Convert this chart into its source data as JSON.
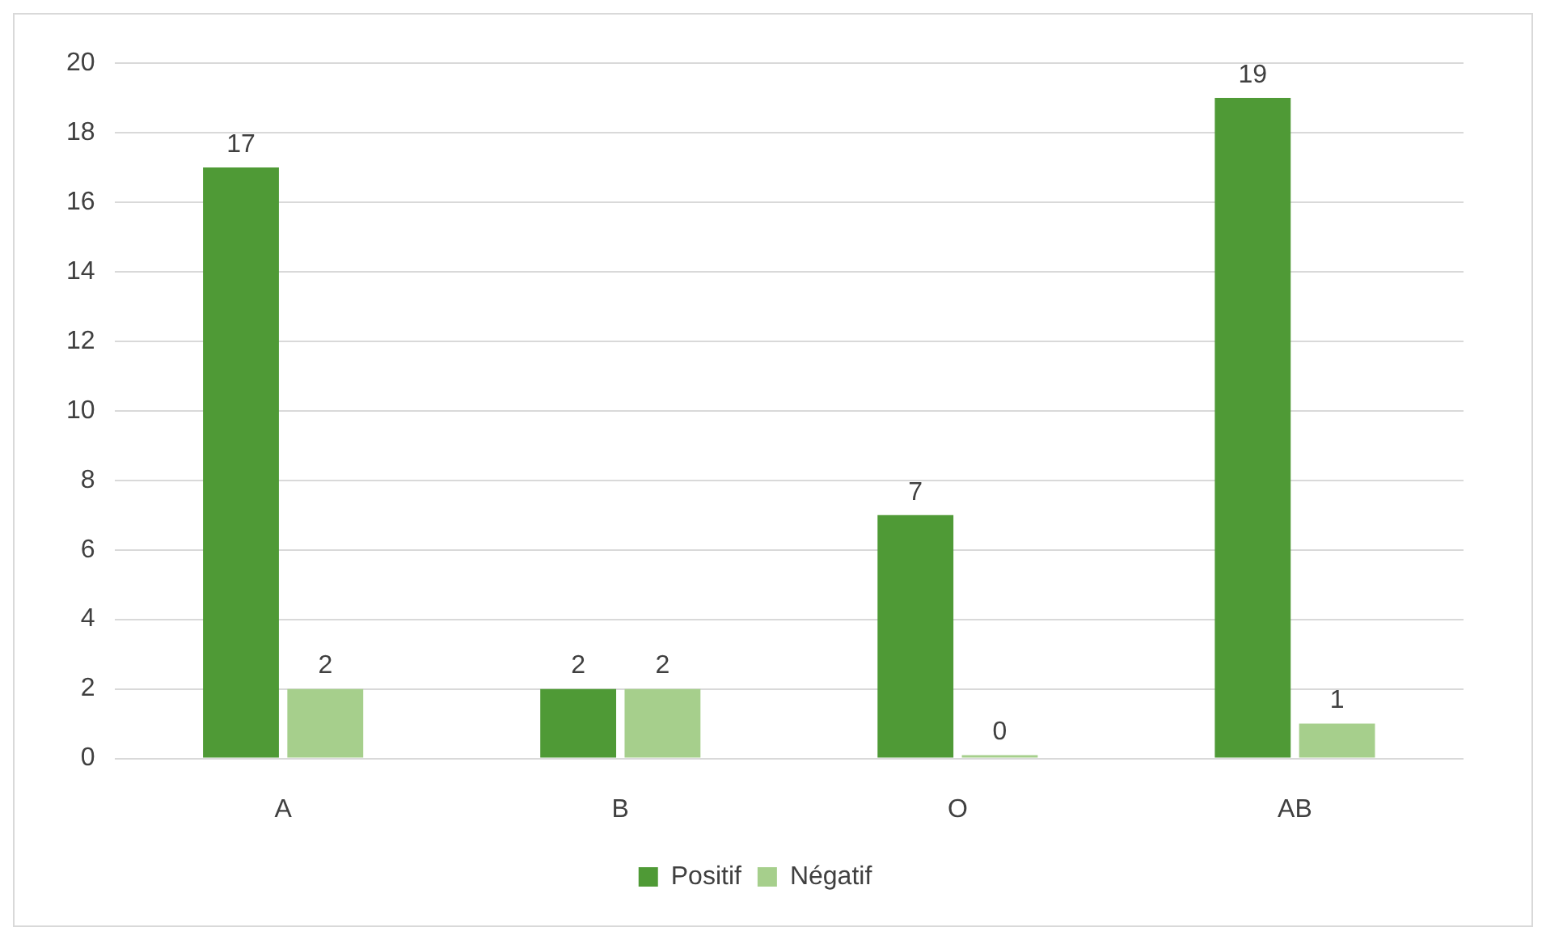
{
  "chart_data": {
    "type": "bar",
    "categories": [
      "A",
      "B",
      "O",
      "AB"
    ],
    "series": [
      {
        "name": "Positif",
        "color": "#4f9a36",
        "values": [
          17,
          2,
          7,
          19
        ]
      },
      {
        "name": "Négatif",
        "color": "#a6cf8c",
        "values": [
          2,
          2,
          0,
          1
        ]
      }
    ],
    "ylim": [
      0,
      20
    ],
    "yticks": [
      0,
      2,
      4,
      6,
      8,
      10,
      12,
      14,
      16,
      18,
      20
    ],
    "grid": "y",
    "legend": "bottom",
    "data_labels": true
  }
}
